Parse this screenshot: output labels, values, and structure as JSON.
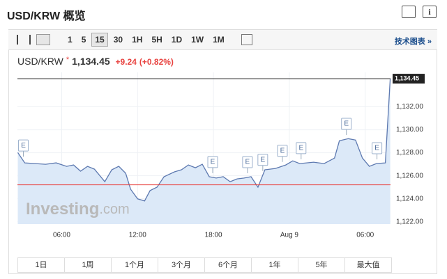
{
  "header": {
    "title": "USD/KRW 概览"
  },
  "toolbar": {
    "intervals": [
      "1",
      "5",
      "15",
      "30",
      "1H",
      "5H",
      "1D",
      "1W",
      "1M"
    ],
    "selected": "15",
    "link": "技术图表 »"
  },
  "quote": {
    "symbol": "USD/KRW",
    "marker": "*",
    "price": "1,134.45",
    "change": "+9.24",
    "change_pct": "(+0.82%)"
  },
  "chart_data": {
    "type": "area",
    "x": [
      2.53,
      3.08,
      3.91,
      4.73,
      5.56,
      6.39,
      6.94,
      7.49,
      8.04,
      8.59,
      9.41,
      9.96,
      10.51,
      11.06,
      11.45,
      12.0,
      12.55,
      12.99,
      13.54,
      14.09,
      14.92,
      15.47,
      16.02,
      16.57,
      17.12,
      17.67,
      18.22,
      18.77,
      19.32,
      19.87,
      20.42,
      20.97,
      21.52,
      22.07,
      22.9,
      23.72,
      24.27,
      24.82,
      25.92,
      26.75,
      27.57,
      27.96,
      28.67,
      29.23,
      29.78,
      30.33,
      30.88,
      31.59,
      31.98
    ],
    "series": [
      {
        "color": "#5d79b0",
        "fill": "#dce9f8",
        "values": [
          1128.02,
          1127.12,
          1127.06,
          1127.0,
          1127.12,
          1126.82,
          1126.94,
          1126.4,
          1126.82,
          1126.58,
          1125.49,
          1126.52,
          1126.82,
          1126.22,
          1124.83,
          1123.99,
          1123.81,
          1124.71,
          1125.01,
          1125.92,
          1126.34,
          1126.52,
          1126.94,
          1126.7,
          1127.0,
          1125.92,
          1125.8,
          1125.92,
          1125.49,
          1125.73,
          1125.8,
          1125.92,
          1125.01,
          1126.52,
          1126.64,
          1126.94,
          1127.3,
          1127.06,
          1127.18,
          1127.06,
          1127.54,
          1129.05,
          1129.23,
          1129.11,
          1127.54,
          1126.82,
          1127.06,
          1127.12,
          1134.45
        ]
      }
    ],
    "xlim": [
      2.5,
      32
    ],
    "xticks": [
      {
        "value": 6,
        "label": "06:00"
      },
      {
        "value": 12,
        "label": "12:00"
      },
      {
        "value": 18,
        "label": "18:00"
      },
      {
        "value": 24,
        "label": "Aug 9"
      },
      {
        "value": 30,
        "label": "06:00"
      }
    ],
    "ylim": [
      1121.8,
      1135
    ],
    "yticks": [
      {
        "value": 1122,
        "label": "1,122.00"
      },
      {
        "value": 1124,
        "label": "1,124.00"
      },
      {
        "value": 1126,
        "label": "1,126.00"
      },
      {
        "value": 1128,
        "label": "1,128.00"
      },
      {
        "value": 1130,
        "label": "1,130.00"
      },
      {
        "value": 1132,
        "label": "1,132.00"
      }
    ],
    "grid": true,
    "reference_line": {
      "value": 1125.21,
      "color": "#e8423f"
    },
    "last_value": {
      "value": 1134.45,
      "label": "1,134.45"
    },
    "events": [
      {
        "x": 2.97,
        "label": "E"
      },
      {
        "x": 17.94,
        "label": "E"
      },
      {
        "x": 20.69,
        "label": "E"
      },
      {
        "x": 21.9,
        "label": "E"
      },
      {
        "x": 23.45,
        "label": "E"
      },
      {
        "x": 24.93,
        "label": "E"
      },
      {
        "x": 28.51,
        "label": "E"
      },
      {
        "x": 30.93,
        "label": "E"
      }
    ],
    "watermark": {
      "brand": "Investing",
      "suffix": ".com"
    }
  },
  "ranges": [
    "1日",
    "1周",
    "1个月",
    "3个月",
    "6个月",
    "1年",
    "5年",
    "最大值"
  ]
}
